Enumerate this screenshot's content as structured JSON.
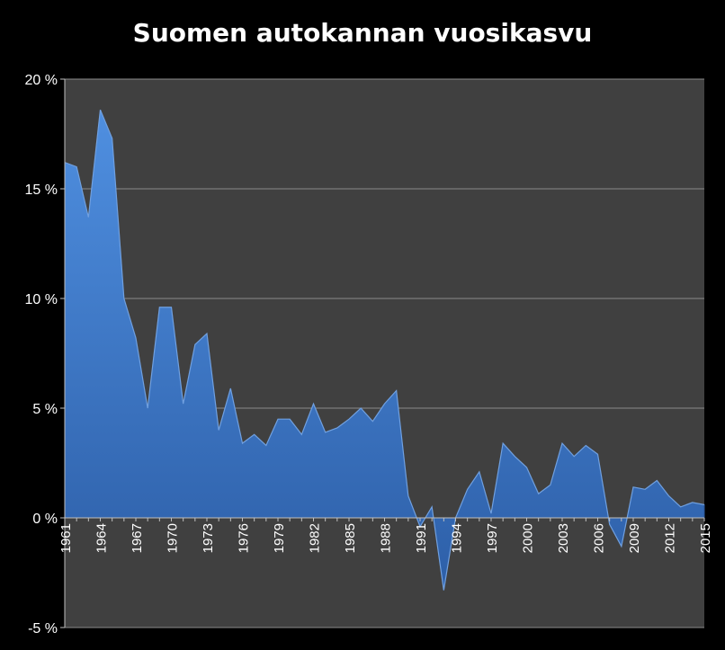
{
  "chart_data": {
    "type": "area",
    "title": "Suomen autokannan vuosikasvu",
    "xlabel": "",
    "ylabel": "",
    "ylim": [
      -5,
      20
    ],
    "y_ticks": [
      -5,
      0,
      5,
      10,
      15,
      20
    ],
    "y_tick_labels": [
      "-5 %",
      "0 %",
      "5 %",
      "10 %",
      "15 %",
      "20 %"
    ],
    "x_tick_labels": [
      "1961",
      "1964",
      "1967",
      "1970",
      "1973",
      "1976",
      "1979",
      "1982",
      "1985",
      "1988",
      "1991",
      "1994",
      "1997",
      "2000",
      "2003",
      "2006",
      "2009",
      "2012",
      "2015"
    ],
    "grid": true,
    "colors": {
      "background": "#000000",
      "plot_area": "#404040",
      "area_fill": "#3a75c4",
      "gridline": "#8a8a8a"
    },
    "series": [
      {
        "x": [
          1961,
          1962,
          1963,
          1964,
          1965,
          1966,
          1967,
          1968,
          1969,
          1970,
          1971,
          1972,
          1973,
          1974,
          1975,
          1976,
          1977,
          1978,
          1979,
          1980,
          1981,
          1982,
          1983,
          1984,
          1985,
          1986,
          1987,
          1988,
          1989,
          1990,
          1991,
          1992,
          1993,
          1994,
          1995,
          1996,
          1997,
          1998,
          1999,
          2000,
          2001,
          2002,
          2003,
          2004,
          2005,
          2006,
          2007,
          2008,
          2009,
          2010,
          2011,
          2012,
          2013,
          2014,
          2015
        ],
        "values": [
          16.2,
          16.0,
          13.7,
          18.6,
          17.3,
          10.0,
          8.2,
          5.0,
          9.6,
          9.6,
          5.2,
          7.9,
          8.4,
          4.0,
          5.9,
          3.4,
          3.8,
          3.3,
          4.5,
          4.5,
          3.8,
          5.2,
          3.9,
          4.1,
          4.5,
          5.0,
          4.4,
          5.2,
          5.8,
          1.0,
          -0.4,
          0.5,
          -3.3,
          0.0,
          1.3,
          2.1,
          0.2,
          3.4,
          2.8,
          2.3,
          1.1,
          1.5,
          3.4,
          2.8,
          3.3,
          2.9,
          -0.3,
          -1.3,
          1.4,
          1.3,
          1.7,
          1.0,
          0.5,
          0.7,
          0.6
        ]
      }
    ]
  }
}
